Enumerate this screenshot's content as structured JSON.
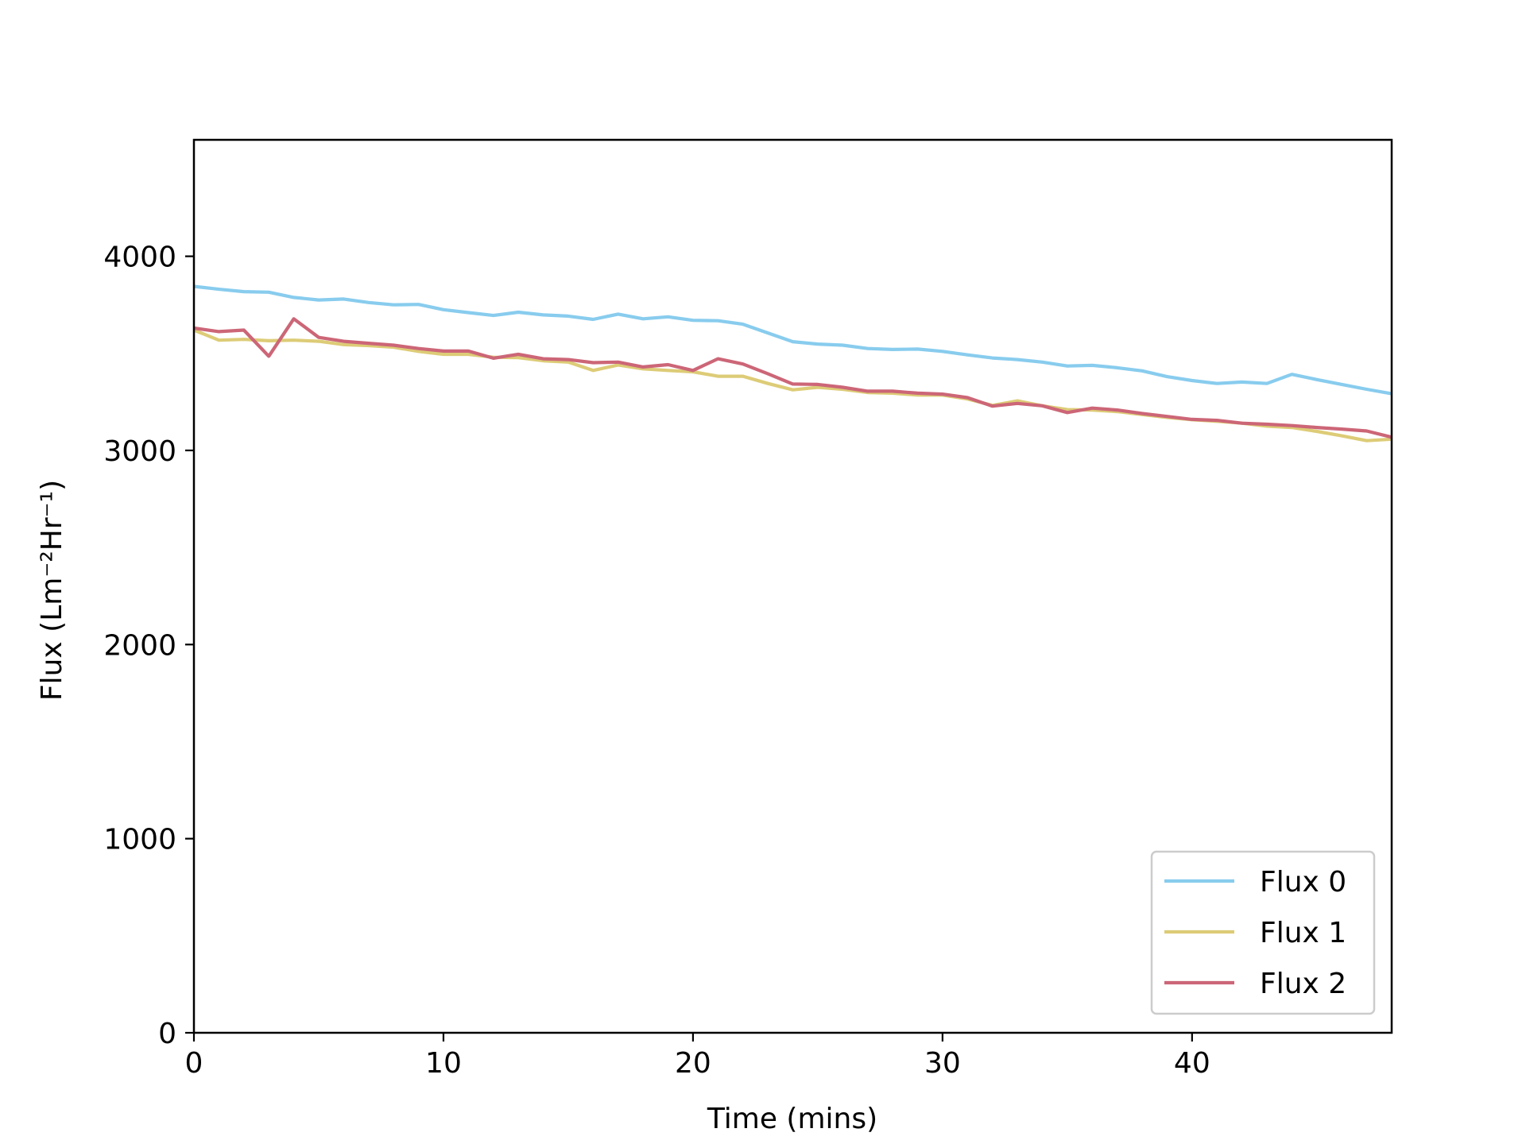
{
  "chart_data": {
    "type": "line",
    "title": "",
    "xlabel": "Time (mins)",
    "ylabel": "Flux (Lm⁻²Hr⁻¹)",
    "xlim": [
      0,
      48
    ],
    "ylim": [
      0,
      4600
    ],
    "xticks": [
      0,
      10,
      20,
      30,
      40
    ],
    "yticks": [
      0,
      1000,
      2000,
      3000,
      4000
    ],
    "grid": false,
    "legend_position": "lower-right",
    "x": [
      0,
      1,
      2,
      3,
      4,
      5,
      6,
      7,
      8,
      9,
      10,
      11,
      12,
      13,
      14,
      15,
      16,
      17,
      18,
      19,
      20,
      21,
      22,
      23,
      24,
      25,
      26,
      27,
      28,
      29,
      30,
      31,
      32,
      33,
      34,
      35,
      36,
      37,
      38,
      39,
      40,
      41,
      42,
      43,
      44,
      45,
      46,
      47,
      48
    ],
    "series": [
      {
        "name": "Flux 0",
        "color": "#88CCEE",
        "values": [
          3845,
          3830,
          3818,
          3815,
          3788,
          3775,
          3780,
          3762,
          3750,
          3752,
          3725,
          3710,
          3695,
          3712,
          3698,
          3692,
          3675,
          3702,
          3678,
          3688,
          3670,
          3668,
          3650,
          3605,
          3560,
          3548,
          3542,
          3525,
          3520,
          3522,
          3510,
          3492,
          3476,
          3468,
          3455,
          3435,
          3438,
          3426,
          3410,
          3380,
          3360,
          3345,
          3352,
          3345,
          3392,
          3365,
          3340,
          3315,
          3292
        ]
      },
      {
        "name": "Flux 1",
        "color": "#DDCC77",
        "values": [
          3620,
          3568,
          3572,
          3565,
          3568,
          3562,
          3545,
          3540,
          3532,
          3510,
          3495,
          3495,
          3480,
          3478,
          3462,
          3455,
          3412,
          3440,
          3420,
          3412,
          3405,
          3382,
          3382,
          3345,
          3312,
          3325,
          3315,
          3298,
          3295,
          3285,
          3285,
          3265,
          3232,
          3255,
          3230,
          3210,
          3208,
          3200,
          3185,
          3170,
          3158,
          3150,
          3140,
          3125,
          3118,
          3098,
          3075,
          3050,
          3058
        ]
      },
      {
        "name": "Flux 2",
        "color": "#CC6677",
        "values": [
          3630,
          3612,
          3620,
          3485,
          3678,
          3582,
          3562,
          3552,
          3542,
          3525,
          3512,
          3512,
          3475,
          3495,
          3472,
          3468,
          3452,
          3455,
          3430,
          3442,
          3412,
          3472,
          3445,
          3395,
          3342,
          3340,
          3325,
          3305,
          3305,
          3295,
          3290,
          3272,
          3228,
          3242,
          3230,
          3195,
          3218,
          3208,
          3190,
          3175,
          3160,
          3155,
          3140,
          3135,
          3128,
          3118,
          3110,
          3100,
          3068
        ]
      }
    ]
  }
}
